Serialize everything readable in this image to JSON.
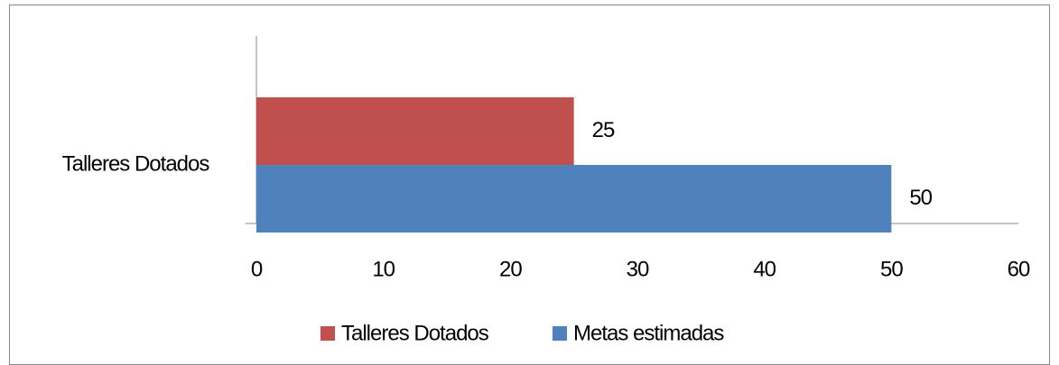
{
  "chart_data": {
    "type": "bar",
    "orientation": "horizontal",
    "categories": [
      "Talleres Dotados"
    ],
    "series": [
      {
        "name": "Talleres Dotados",
        "color": "#c0504d",
        "values": [
          25
        ]
      },
      {
        "name": "Metas estimadas",
        "color": "#4f81bd",
        "values": [
          50
        ]
      }
    ],
    "xlim": [
      0,
      60
    ],
    "xticks": [
      0,
      10,
      20,
      30,
      40,
      50,
      60
    ],
    "grid": false,
    "data_labels": true,
    "legend": "bottom"
  }
}
